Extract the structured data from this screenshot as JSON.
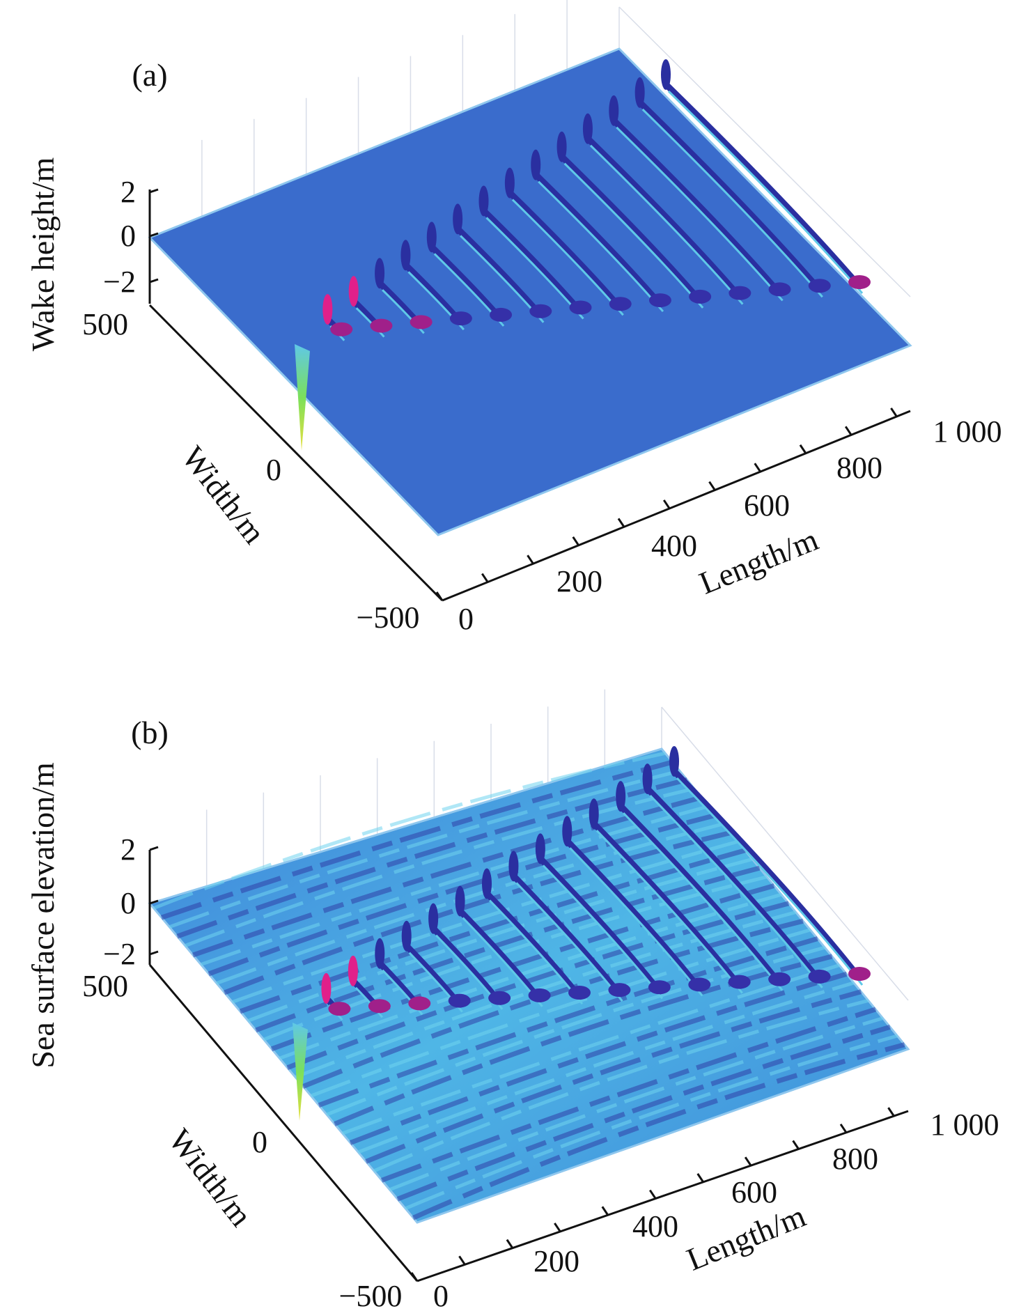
{
  "chart_data": [
    {
      "type": "surface",
      "panel_label": "(a)",
      "zlabel": "Wake height/m",
      "ylabel": "Width/m",
      "xlabel": "Length/m",
      "zticks": [
        "2",
        "0",
        "−2"
      ],
      "yticks": [
        "500",
        "0",
        "−500"
      ],
      "xticks": [
        "0",
        "200",
        "400",
        "600",
        "800",
        "1 000"
      ],
      "xlim": [
        0,
        1000
      ],
      "ylim": [
        -500,
        500
      ],
      "zlim": [
        -3,
        2
      ],
      "description_type": "Kelvin ship wake on calm surface",
      "wake_crests": 14,
      "colormap": [
        "#2a2fa0",
        "#3a6fd0",
        "#5fc8e8",
        "#7be05a",
        "#e8e040",
        "#e0208a"
      ],
      "base_color": "#3a6ccc"
    },
    {
      "type": "surface",
      "panel_label": "(b)",
      "zlabel": "Sea surface elevation/m",
      "ylabel": "Width/m",
      "xlabel": "Length/m",
      "zticks": [
        "2",
        "0",
        "−2"
      ],
      "yticks": [
        "500",
        "0",
        "−500"
      ],
      "xticks": [
        "0",
        "200",
        "400",
        "600",
        "800",
        "1 000"
      ],
      "xlim": [
        0,
        1000
      ],
      "ylim": [
        -500,
        500
      ],
      "zlim": [
        -3,
        2
      ],
      "description_type": "Kelvin ship wake superimposed on sea waves",
      "wake_crests": 14,
      "colormap": [
        "#2a2fa0",
        "#3a6fd0",
        "#5fc8e8",
        "#7be05a",
        "#e8e040",
        "#e0208a"
      ],
      "base_color": "#4aa8e0"
    }
  ]
}
